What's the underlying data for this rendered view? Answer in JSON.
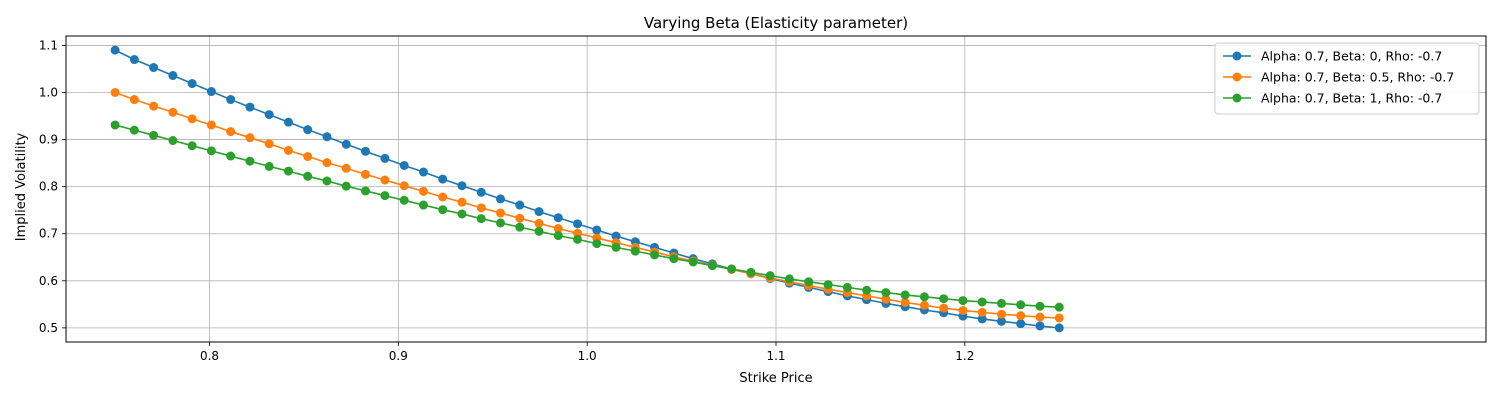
{
  "chart_data": {
    "type": "line",
    "title": "Varying Beta (Elasticity parameter)",
    "xlabel": "Strike Price",
    "ylabel": "Implied Volatility",
    "xlim": [
      0.724,
      1.476
    ],
    "ylim": [
      0.47,
      1.12
    ],
    "xticks": [
      0.8,
      0.9,
      1.0,
      1.1,
      1.2
    ],
    "xtick_labels": [
      "0.8",
      "0.9",
      "1.0",
      "1.1",
      "1.2"
    ],
    "yticks": [
      0.5,
      0.6,
      0.7,
      0.8,
      0.9,
      1.0,
      1.1
    ],
    "ytick_labels": [
      "0.5",
      "0.6",
      "0.7",
      "0.8",
      "0.9",
      "1.0",
      "1.1"
    ],
    "grid": true,
    "legend_position": "top-right",
    "marker": "circle",
    "x": [
      0.75,
      0.7602,
      0.7704,
      0.7806,
      0.7908,
      0.801,
      0.8112,
      0.8214,
      0.8316,
      0.8418,
      0.852,
      0.8622,
      0.8724,
      0.8826,
      0.8929,
      0.9031,
      0.9133,
      0.9235,
      0.9337,
      0.9439,
      0.9541,
      0.9643,
      0.9745,
      0.9847,
      0.9949,
      1.0051,
      1.0153,
      1.0255,
      1.0357,
      1.0459,
      1.0561,
      1.0663,
      1.0765,
      1.0867,
      1.0969,
      1.1071,
      1.1173,
      1.1276,
      1.1378,
      1.148,
      1.1582,
      1.1684,
      1.1786,
      1.1888,
      1.199,
      1.2092,
      1.2194,
      1.2296,
      1.2398,
      1.25
    ],
    "series": [
      {
        "name": "Alpha: 0.7, Beta: 0, Rho: -0.7",
        "color": "#1f77b4",
        "values": [
          1.09,
          1.07,
          1.053,
          1.036,
          1.019,
          1.002,
          0.985,
          0.969,
          0.953,
          0.937,
          0.921,
          0.906,
          0.89,
          0.875,
          0.86,
          0.845,
          0.831,
          0.816,
          0.802,
          0.788,
          0.774,
          0.761,
          0.747,
          0.734,
          0.721,
          0.708,
          0.695,
          0.683,
          0.671,
          0.659,
          0.647,
          0.636,
          0.625,
          0.615,
          0.605,
          0.595,
          0.586,
          0.577,
          0.568,
          0.56,
          0.552,
          0.545,
          0.538,
          0.532,
          0.525,
          0.519,
          0.514,
          0.509,
          0.504,
          0.5
        ]
      },
      {
        "name": "Alpha: 0.7, Beta: 0.5, Rho: -0.7",
        "color": "#ff7f0e",
        "values": [
          1.0,
          0.985,
          0.971,
          0.958,
          0.944,
          0.931,
          0.917,
          0.904,
          0.891,
          0.877,
          0.864,
          0.851,
          0.839,
          0.826,
          0.814,
          0.802,
          0.79,
          0.778,
          0.767,
          0.755,
          0.744,
          0.733,
          0.722,
          0.711,
          0.701,
          0.691,
          0.681,
          0.671,
          0.661,
          0.651,
          0.642,
          0.633,
          0.624,
          0.615,
          0.606,
          0.598,
          0.59,
          0.582,
          0.575,
          0.568,
          0.561,
          0.554,
          0.548,
          0.542,
          0.537,
          0.533,
          0.529,
          0.526,
          0.523,
          0.521
        ]
      },
      {
        "name": "Alpha: 0.7, Beta: 1, Rho: -0.7",
        "color": "#2ca02c",
        "values": [
          0.931,
          0.92,
          0.909,
          0.898,
          0.887,
          0.876,
          0.865,
          0.854,
          0.843,
          0.833,
          0.822,
          0.812,
          0.801,
          0.791,
          0.781,
          0.771,
          0.761,
          0.751,
          0.742,
          0.732,
          0.723,
          0.714,
          0.705,
          0.696,
          0.688,
          0.679,
          0.671,
          0.663,
          0.655,
          0.647,
          0.64,
          0.632,
          0.625,
          0.618,
          0.611,
          0.604,
          0.598,
          0.592,
          0.586,
          0.58,
          0.575,
          0.57,
          0.566,
          0.562,
          0.558,
          0.555,
          0.552,
          0.549,
          0.546,
          0.544
        ]
      }
    ]
  }
}
